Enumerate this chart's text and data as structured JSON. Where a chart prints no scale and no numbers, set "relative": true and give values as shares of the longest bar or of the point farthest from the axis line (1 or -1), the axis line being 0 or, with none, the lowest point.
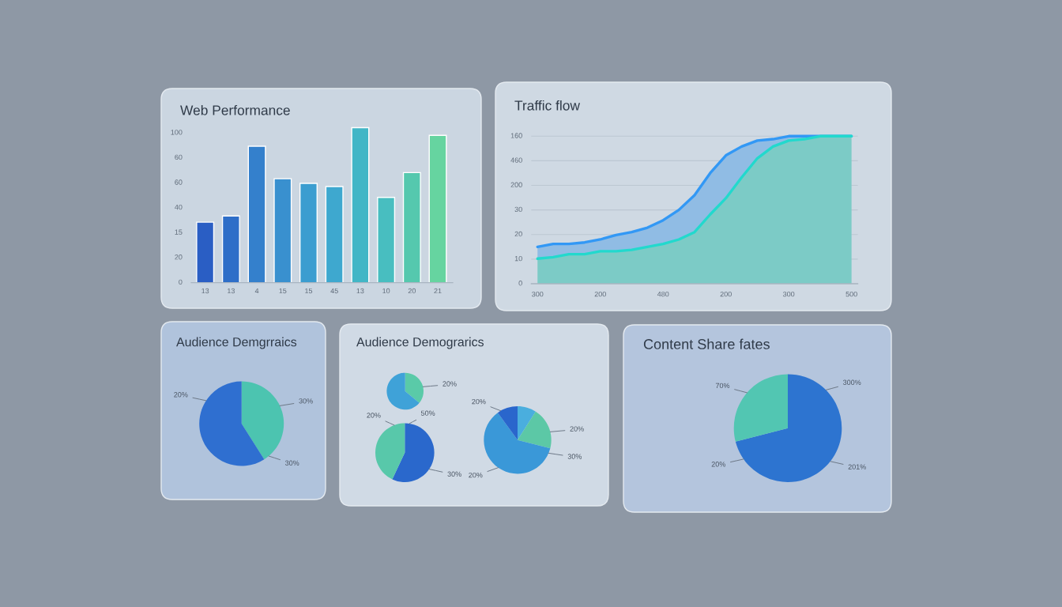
{
  "chart_data": [
    {
      "type": "bar",
      "title": "Web Performance",
      "relative": true,
      "categories": [
        "13",
        "13",
        "4",
        "15",
        "15",
        "45",
        "13",
        "10",
        "20",
        "21"
      ],
      "values": [
        0.39,
        0.43,
        0.88,
        0.67,
        0.64,
        0.62,
        1,
        0.55,
        0.71,
        0.95
      ],
      "colors": [
        "#2a5ec4",
        "#2e6ec8",
        "#3480cc",
        "#3990cf",
        "#3b9dd0",
        "#3ea8cf",
        "#42b6c6",
        "#48bec0",
        "#55c8ae",
        "#66d4a0"
      ],
      "annotations": [
        "0",
        "20",
        "15",
        "40",
        "60",
        "60",
        "100"
      ]
    },
    {
      "type": "area",
      "title": "Traffic flow",
      "relative": true,
      "categories": [
        "300",
        null,
        null,
        null,
        "200",
        null,
        null,
        null,
        "480",
        null,
        null,
        null,
        "200",
        null,
        null,
        null,
        "300",
        null,
        null,
        null,
        "500"
      ],
      "series": [
        {
          "color": "#90bce4",
          "values": [
            0.25,
            0.27,
            0.27,
            0.28,
            0.3,
            0.33,
            0.35,
            0.38,
            0.43,
            0.5,
            0.6,
            0.75,
            0.87,
            0.93,
            0.97,
            0.98,
            1,
            1,
            1,
            1,
            1
          ]
        },
        {
          "color": "#7ccbc6",
          "values": [
            0.17,
            0.18,
            0.2,
            0.2,
            0.22,
            0.22,
            0.23,
            0.25,
            0.27,
            0.3,
            0.35,
            0.47,
            0.58,
            0.72,
            0.85,
            0.93,
            0.97,
            0.98,
            1,
            1,
            1
          ]
        }
      ],
      "grid": "y",
      "annotations": [
        "0",
        "10",
        "20",
        "30",
        "200",
        "460",
        "160"
      ]
    },
    {
      "type": "pie",
      "title": "Audience Demgrraics",
      "categories": [
        null,
        null
      ],
      "values": [
        41,
        59
      ],
      "colors": [
        "#4cc4b0",
        "#2f6fd0"
      ],
      "annotations": [
        "30%",
        "30%",
        "20%"
      ]
    },
    {
      "type": "pie",
      "title": "Audience Demograrics",
      "categories": [
        null,
        null
      ],
      "values": [
        36,
        64
      ],
      "colors": [
        "#5acaa8",
        "#3fa2d8"
      ],
      "annotations": [
        "20%"
      ]
    },
    {
      "type": "pie",
      "categories": [
        null,
        null
      ],
      "values": [
        57,
        43
      ],
      "colors": [
        "#2a68cc",
        "#58c8aa"
      ],
      "annotations": [
        "50%",
        "30%",
        "20%"
      ]
    },
    {
      "type": "pie",
      "categories": [
        null,
        null,
        null,
        null
      ],
      "values": [
        9,
        20,
        61,
        10
      ],
      "colors": [
        "#4aaede",
        "#5cc8a6",
        "#3a98d8",
        "#2a66cc"
      ],
      "annotations": [
        "20%",
        "30%",
        "20%",
        "20%"
      ]
    },
    {
      "type": "pie",
      "title": "Content Share fates",
      "categories": [
        null,
        null
      ],
      "values": [
        71,
        29
      ],
      "colors": [
        "#2d74d0",
        "#52c6b2"
      ],
      "annotations": [
        "300%",
        "201%",
        "20%",
        "70%"
      ]
    }
  ]
}
